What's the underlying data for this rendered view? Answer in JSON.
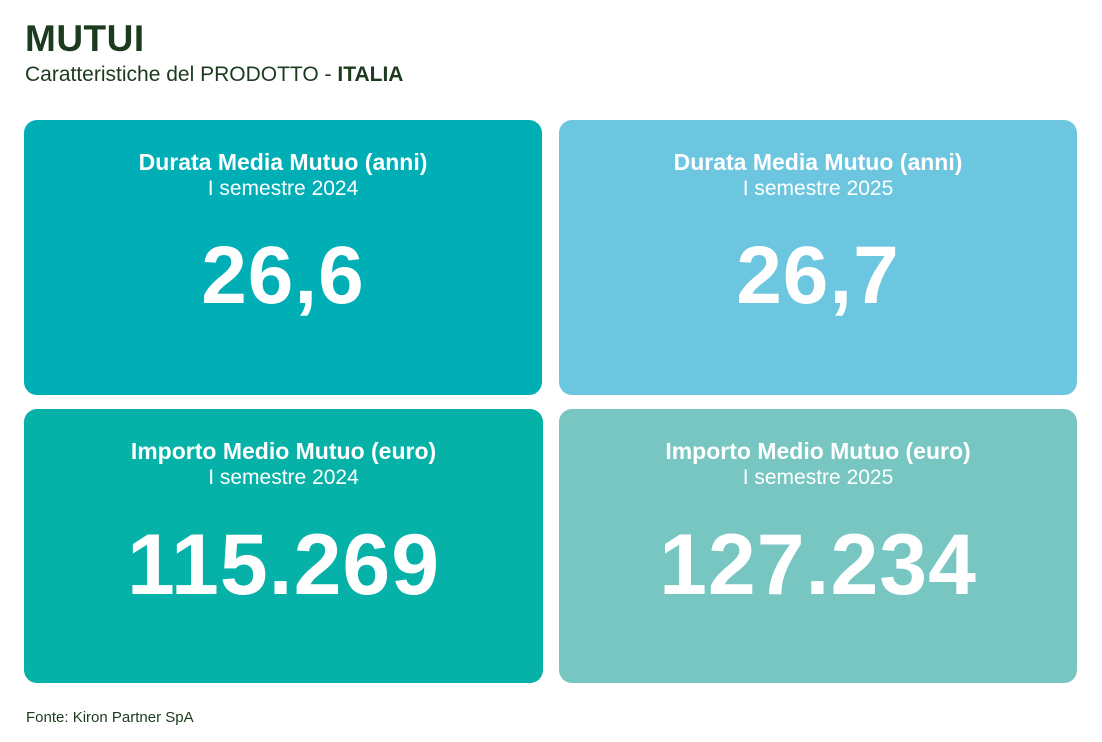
{
  "header": {
    "title": "MUTUI",
    "subtitle_prefix": "Caratteristiche del PRODOTTO - ",
    "subtitle_country": "ITALIA"
  },
  "cards": [
    {
      "title": "Durata Media Mutuo (anni)",
      "period": "I semestre 2024",
      "value": "26,6",
      "color": "#00aeb6"
    },
    {
      "title": "Durata Media Mutuo (anni)",
      "period": "I semestre 2025",
      "value": "26,7",
      "color": "#6dc6df"
    },
    {
      "title": "Importo Medio Mutuo (euro)",
      "period": "I semestre 2024",
      "value": "115.269",
      "color": "#06b1a8"
    },
    {
      "title": "Importo Medio Mutuo (euro)",
      "period": "I semestre 2025",
      "value": "127.234",
      "color": "#77c6c2"
    }
  ],
  "footer": {
    "source": "Fonte: Kiron Partner SpA"
  },
  "colors": {
    "text_dark_green": "#1c3a1d",
    "card_text": "#ffffff"
  }
}
